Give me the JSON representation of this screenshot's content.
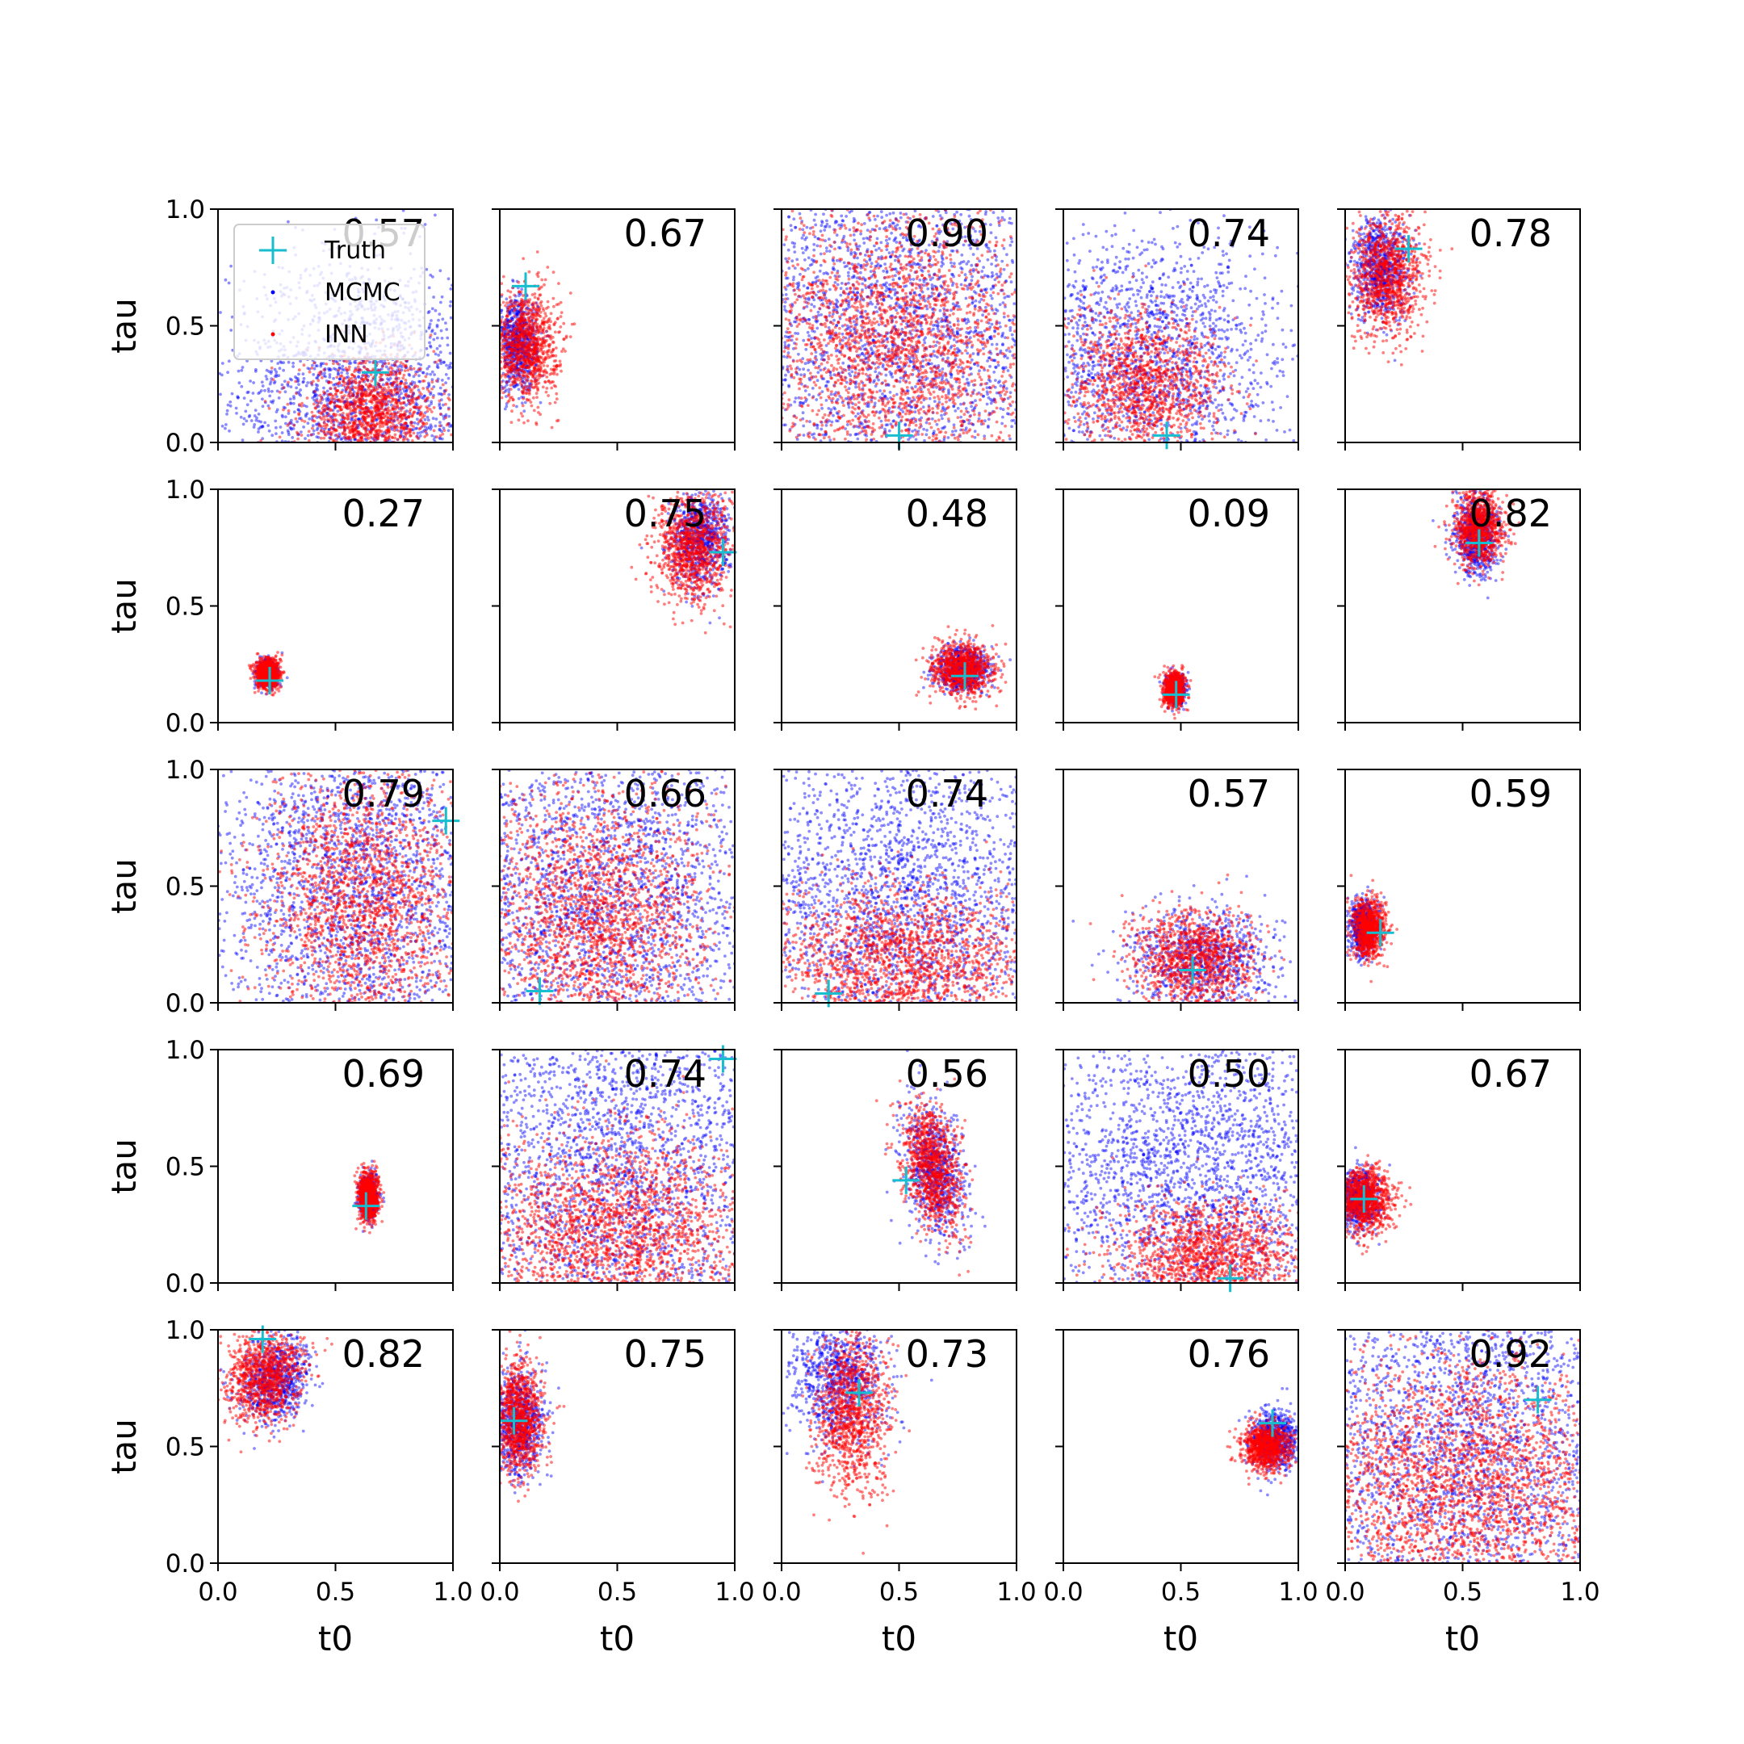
{
  "chart_data": {
    "type": "scatter",
    "grid": false,
    "rows": 5,
    "cols": 5,
    "xlabel": "t0",
    "ylabel": "tau",
    "xlim": [
      0,
      1
    ],
    "ylim": [
      0,
      1
    ],
    "xticks": [
      "0.0",
      "0.5",
      "1.0"
    ],
    "yticks": [
      "0.0",
      "0.5",
      "1.0"
    ],
    "legend": {
      "placement": "upper-left of first panel",
      "entries": [
        {
          "label": "Truth",
          "color": "#17becf",
          "marker": "plus"
        },
        {
          "label": "MCMC",
          "color": "#0000ff",
          "marker": "dot"
        },
        {
          "label": "INN",
          "color": "#ff0000",
          "marker": "dot"
        }
      ]
    },
    "colors": {
      "truth": "#17becf",
      "mcmc": "#0000ff",
      "inn": "#ff0000"
    },
    "panels": [
      {
        "score": "0.57",
        "truth": [
          0.67,
          0.3
        ],
        "inn": {
          "cx": 0.65,
          "cy": 0.12,
          "sx": 0.14,
          "sy": 0.12,
          "rot": 0
        },
        "mcmc": {
          "cx": 0.62,
          "cy": 0.2,
          "sx": 0.28,
          "sy": 0.3,
          "rot": 0
        }
      },
      {
        "score": "0.67",
        "truth": [
          0.11,
          0.67
        ],
        "inn": {
          "cx": 0.11,
          "cy": 0.42,
          "sx": 0.07,
          "sy": 0.12,
          "rot": 0
        },
        "mcmc": {
          "cx": 0.08,
          "cy": 0.42,
          "sx": 0.04,
          "sy": 0.1,
          "rot": 0
        }
      },
      {
        "score": "0.90",
        "truth": [
          0.5,
          0.03
        ],
        "inn": {
          "cx": 0.5,
          "cy": 0.42,
          "sx": 0.3,
          "sy": 0.3,
          "rot": 0
        },
        "mcmc": {
          "cx": 0.5,
          "cy": 0.5,
          "sx": 0.45,
          "sy": 0.45,
          "rot": 0
        }
      },
      {
        "score": "0.74",
        "truth": [
          0.44,
          0.03
        ],
        "inn": {
          "cx": 0.35,
          "cy": 0.25,
          "sx": 0.17,
          "sy": 0.15,
          "rot": 0
        },
        "mcmc": {
          "cx": 0.35,
          "cy": 0.35,
          "sx": 0.3,
          "sy": 0.28,
          "rot": 0
        }
      },
      {
        "score": "0.78",
        "truth": [
          0.27,
          0.83
        ],
        "inn": {
          "cx": 0.18,
          "cy": 0.72,
          "sx": 0.08,
          "sy": 0.13,
          "rot": 0
        },
        "mcmc": {
          "cx": 0.15,
          "cy": 0.75,
          "sx": 0.06,
          "sy": 0.11,
          "rot": 0
        }
      },
      {
        "score": "0.27",
        "truth": [
          0.22,
          0.18
        ],
        "inn": {
          "cx": 0.21,
          "cy": 0.21,
          "sx": 0.025,
          "sy": 0.032,
          "rot": 0
        },
        "mcmc": {
          "cx": 0.21,
          "cy": 0.21,
          "sx": 0.02,
          "sy": 0.028,
          "rot": 0
        }
      },
      {
        "score": "0.75",
        "truth": [
          0.95,
          0.73
        ],
        "inn": {
          "cx": 0.82,
          "cy": 0.75,
          "sx": 0.08,
          "sy": 0.12,
          "rot": 0
        },
        "mcmc": {
          "cx": 0.85,
          "cy": 0.78,
          "sx": 0.06,
          "sy": 0.1,
          "rot": 0
        }
      },
      {
        "score": "0.48",
        "truth": [
          0.78,
          0.2
        ],
        "inn": {
          "cx": 0.77,
          "cy": 0.23,
          "sx": 0.065,
          "sy": 0.055,
          "rot": 0
        },
        "mcmc": {
          "cx": 0.77,
          "cy": 0.23,
          "sx": 0.055,
          "sy": 0.045,
          "rot": 0
        }
      },
      {
        "score": "0.09",
        "truth": [
          0.48,
          0.12
        ],
        "inn": {
          "cx": 0.47,
          "cy": 0.14,
          "sx": 0.022,
          "sy": 0.035,
          "rot": 0
        },
        "mcmc": {
          "cx": 0.48,
          "cy": 0.14,
          "sx": 0.018,
          "sy": 0.03,
          "rot": 0
        }
      },
      {
        "score": "0.82",
        "truth": [
          0.57,
          0.77
        ],
        "inn": {
          "cx": 0.57,
          "cy": 0.83,
          "sx": 0.05,
          "sy": 0.08,
          "rot": 0
        },
        "mcmc": {
          "cx": 0.56,
          "cy": 0.8,
          "sx": 0.045,
          "sy": 0.09,
          "rot": 0
        }
      },
      {
        "score": "0.79",
        "truth": [
          0.97,
          0.78
        ],
        "inn": {
          "cx": 0.62,
          "cy": 0.45,
          "sx": 0.22,
          "sy": 0.3,
          "rot": 0
        },
        "mcmc": {
          "cx": 0.6,
          "cy": 0.5,
          "sx": 0.32,
          "sy": 0.42,
          "rot": 0
        }
      },
      {
        "score": "0.66",
        "truth": [
          0.17,
          0.05
        ],
        "inn": {
          "cx": 0.4,
          "cy": 0.35,
          "sx": 0.25,
          "sy": 0.28,
          "rot": 0
        },
        "mcmc": {
          "cx": 0.45,
          "cy": 0.45,
          "sx": 0.38,
          "sy": 0.4,
          "rot": 0
        }
      },
      {
        "score": "0.74",
        "truth": [
          0.2,
          0.04
        ],
        "inn": {
          "cx": 0.5,
          "cy": 0.18,
          "sx": 0.28,
          "sy": 0.16,
          "rot": 0
        },
        "mcmc": {
          "cx": 0.5,
          "cy": 0.4,
          "sx": 0.4,
          "sy": 0.38,
          "rot": 0
        }
      },
      {
        "score": "0.57",
        "truth": [
          0.55,
          0.14
        ],
        "inn": {
          "cx": 0.55,
          "cy": 0.18,
          "sx": 0.13,
          "sy": 0.11,
          "rot": 0
        },
        "mcmc": {
          "cx": 0.6,
          "cy": 0.18,
          "sx": 0.15,
          "sy": 0.11,
          "rot": 0
        }
      },
      {
        "score": "0.59",
        "truth": [
          0.15,
          0.3
        ],
        "inn": {
          "cx": 0.1,
          "cy": 0.32,
          "sx": 0.035,
          "sy": 0.06,
          "rot": 0
        },
        "mcmc": {
          "cx": 0.08,
          "cy": 0.32,
          "sx": 0.03,
          "sy": 0.055,
          "rot": 0
        }
      },
      {
        "score": "0.69",
        "truth": [
          0.63,
          0.33
        ],
        "inn": {
          "cx": 0.64,
          "cy": 0.37,
          "sx": 0.022,
          "sy": 0.05,
          "rot": 0
        },
        "mcmc": {
          "cx": 0.64,
          "cy": 0.37,
          "sx": 0.018,
          "sy": 0.045,
          "rot": 0
        }
      },
      {
        "score": "0.74",
        "truth": [
          0.95,
          0.96
        ],
        "inn": {
          "cx": 0.48,
          "cy": 0.22,
          "sx": 0.3,
          "sy": 0.22,
          "rot": 0
        },
        "mcmc": {
          "cx": 0.5,
          "cy": 0.5,
          "sx": 0.4,
          "sy": 0.42,
          "rot": 0
        }
      },
      {
        "score": "0.56",
        "truth": [
          0.53,
          0.44
        ],
        "inn": {
          "cx": 0.64,
          "cy": 0.5,
          "sx": 0.06,
          "sy": 0.14,
          "rot": 10
        },
        "mcmc": {
          "cx": 0.65,
          "cy": 0.48,
          "sx": 0.06,
          "sy": 0.15,
          "rot": 10
        }
      },
      {
        "score": "0.50",
        "truth": [
          0.71,
          0.02
        ],
        "inn": {
          "cx": 0.62,
          "cy": 0.12,
          "sx": 0.2,
          "sy": 0.12,
          "rot": 0
        },
        "mcmc": {
          "cx": 0.55,
          "cy": 0.45,
          "sx": 0.4,
          "sy": 0.4,
          "rot": 0
        }
      },
      {
        "score": "0.67",
        "truth": [
          0.08,
          0.36
        ],
        "inn": {
          "cx": 0.08,
          "cy": 0.36,
          "sx": 0.06,
          "sy": 0.07,
          "rot": 0
        },
        "mcmc": {
          "cx": 0.06,
          "cy": 0.36,
          "sx": 0.04,
          "sy": 0.06,
          "rot": 0
        }
      },
      {
        "score": "0.82",
        "truth": [
          0.19,
          0.96
        ],
        "inn": {
          "cx": 0.2,
          "cy": 0.8,
          "sx": 0.08,
          "sy": 0.1,
          "rot": -20
        },
        "mcmc": {
          "cx": 0.24,
          "cy": 0.78,
          "sx": 0.07,
          "sy": 0.09,
          "rot": -20
        }
      },
      {
        "score": "0.75",
        "truth": [
          0.06,
          0.61
        ],
        "inn": {
          "cx": 0.08,
          "cy": 0.62,
          "sx": 0.05,
          "sy": 0.12,
          "rot": 0
        },
        "mcmc": {
          "cx": 0.08,
          "cy": 0.6,
          "sx": 0.05,
          "sy": 0.11,
          "rot": 0
        }
      },
      {
        "score": "0.73",
        "truth": [
          0.33,
          0.73
        ],
        "inn": {
          "cx": 0.3,
          "cy": 0.65,
          "sx": 0.08,
          "sy": 0.17,
          "rot": 0
        },
        "mcmc": {
          "cx": 0.25,
          "cy": 0.78,
          "sx": 0.1,
          "sy": 0.14,
          "rot": 0
        }
      },
      {
        "score": "0.76",
        "truth": [
          0.89,
          0.6
        ],
        "inn": {
          "cx": 0.86,
          "cy": 0.5,
          "sx": 0.05,
          "sy": 0.05,
          "rot": 0
        },
        "mcmc": {
          "cx": 0.9,
          "cy": 0.53,
          "sx": 0.05,
          "sy": 0.06,
          "rot": 0
        }
      },
      {
        "score": "0.92",
        "truth": [
          0.82,
          0.7
        ],
        "inn": {
          "cx": 0.5,
          "cy": 0.35,
          "sx": 0.35,
          "sy": 0.28,
          "rot": 0
        },
        "mcmc": {
          "cx": 0.5,
          "cy": 0.5,
          "sx": 0.45,
          "sy": 0.45,
          "rot": 0
        }
      }
    ]
  }
}
